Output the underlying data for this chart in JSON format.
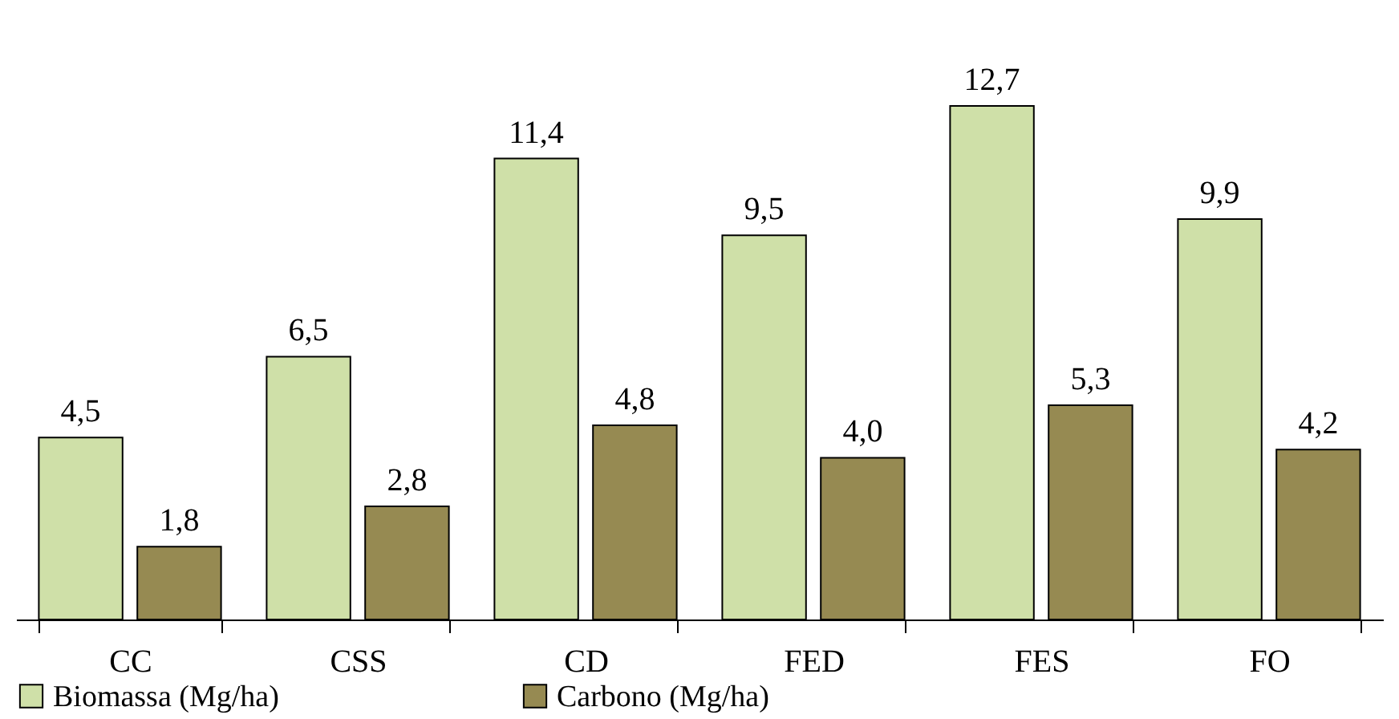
{
  "chart_data": {
    "type": "bar",
    "categories": [
      "CC",
      "CSS",
      "CD",
      "FED",
      "FES",
      "FO"
    ],
    "series": [
      {
        "name": "Biomassa (Mg/ha)",
        "color": "#cfe0a8",
        "values": [
          4.5,
          6.5,
          11.4,
          9.5,
          12.7,
          9.9
        ],
        "value_labels": [
          "4,5",
          "6,5",
          "11,4",
          "9,5",
          "12,7",
          "9,9"
        ]
      },
      {
        "name": "Carbono (Mg/ha)",
        "color": "#968a52",
        "values": [
          1.8,
          2.8,
          4.8,
          4.0,
          5.3,
          4.2
        ],
        "value_labels": [
          "1,8",
          "2,8",
          "4,8",
          "4,0",
          "5,3",
          "4,2"
        ]
      }
    ],
    "grid": false,
    "legend": "bottom"
  }
}
